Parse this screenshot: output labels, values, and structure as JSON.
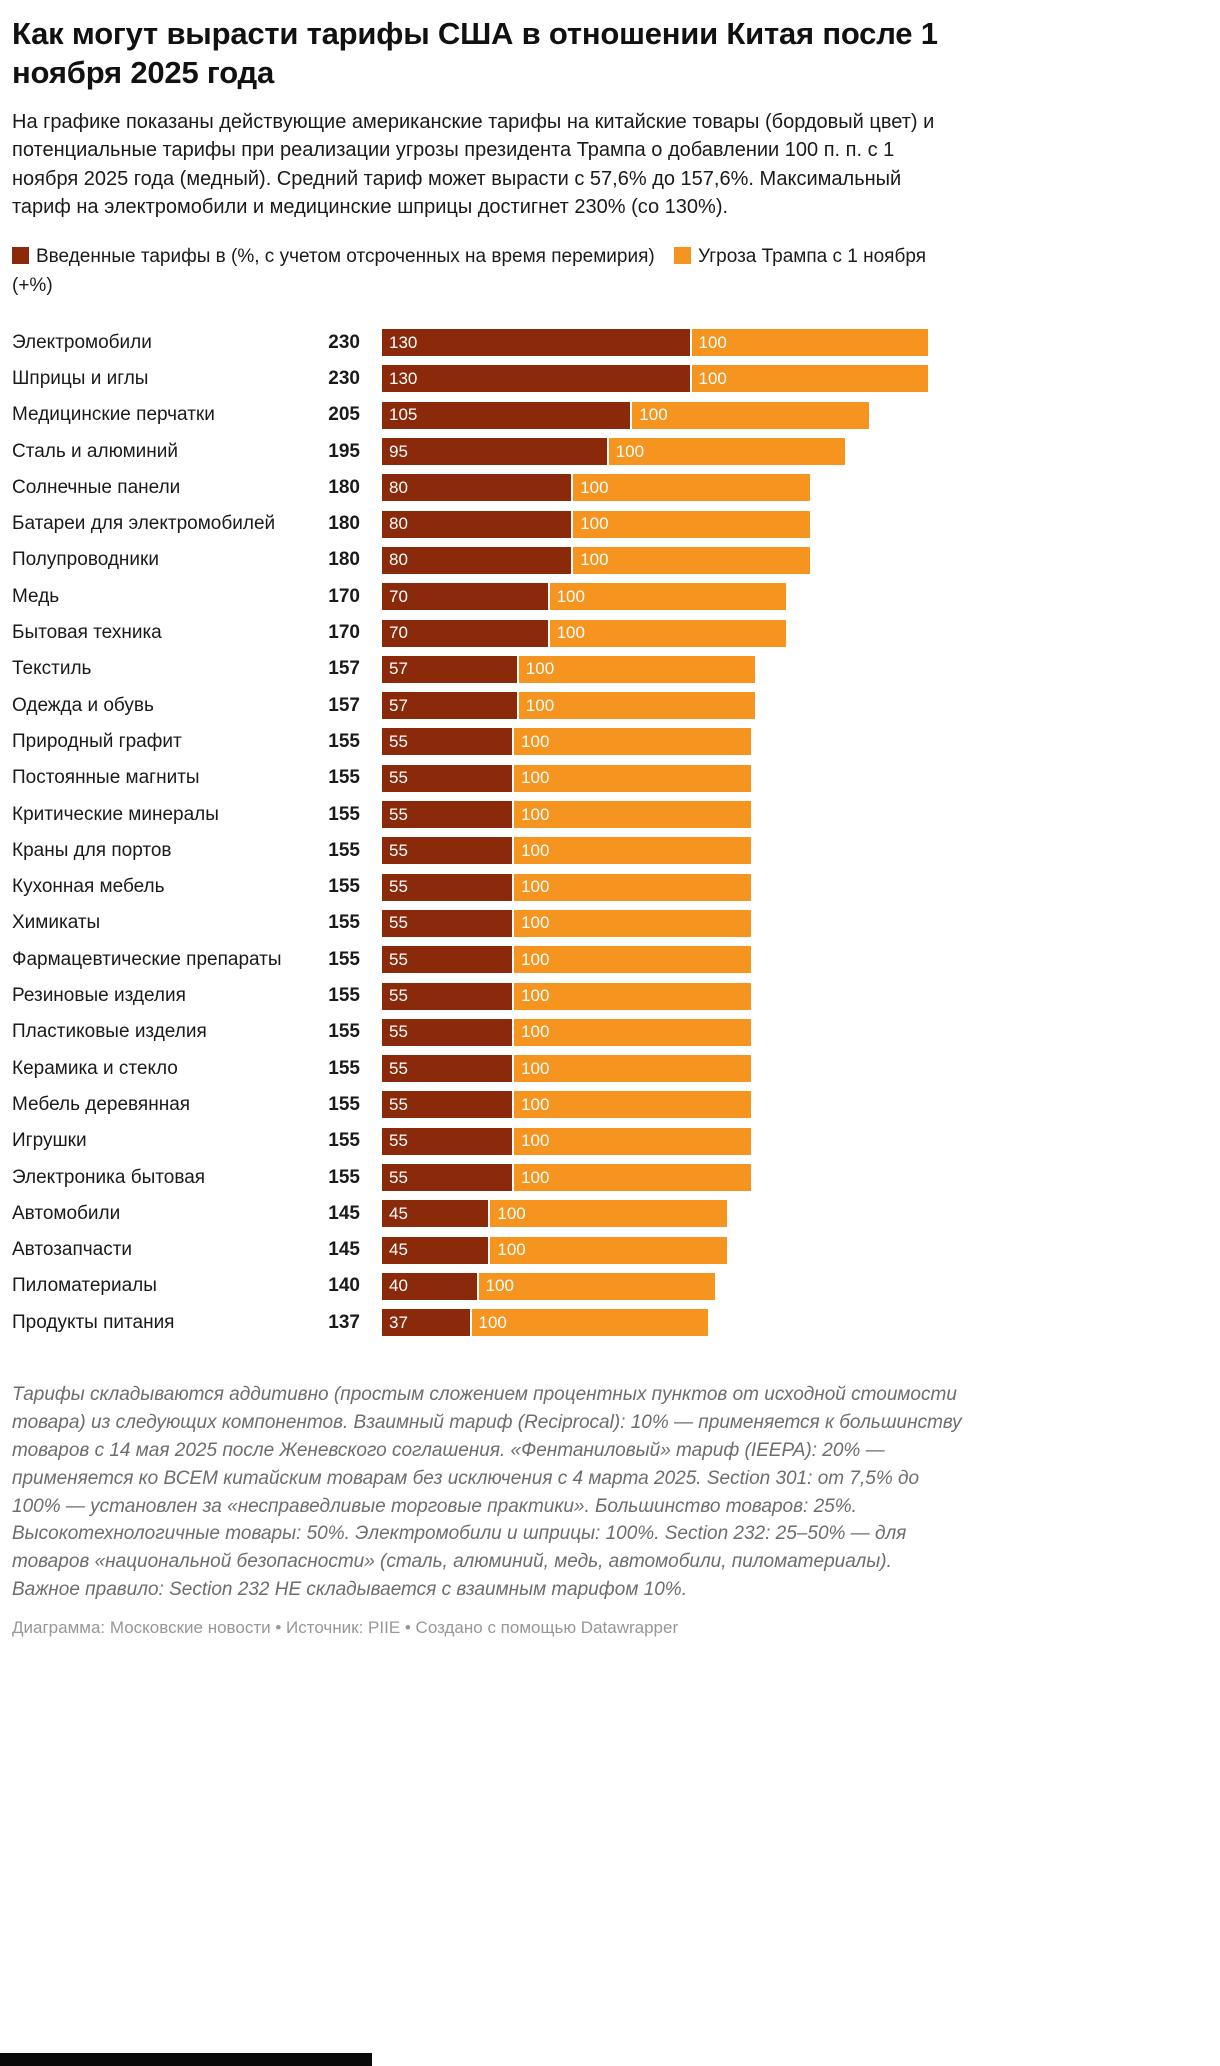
{
  "header": {
    "title": "Как могут вырасти тарифы США в отношении Китая после 1 ноября 2025 года",
    "description": "На графике показаны действующие американские тарифы на китайские товары (бордовый цвет) и потенциальные тарифы при реализации угрозы президента Трампа о добавлении 100 п. п. с 1 ноября 2025 года (медный). Средний тариф может вырасти с 57,6% до 157,6%. Максимальный тариф на электромобили и медицинские шприцы достигнет 230% (со 130%)."
  },
  "legend": {
    "items": [
      {
        "label": "Введенные тарифы в (%, с учетом отсроченных на время перемирия)",
        "color": "#8B2A0A"
      },
      {
        "label": "Угроза Трампа с 1 ноября (+%)",
        "color": "#F5941F"
      }
    ]
  },
  "chart_data": {
    "type": "bar",
    "orientation": "horizontal",
    "stacked": true,
    "xmax": 230,
    "categories": [
      "Электромобили",
      "Шприцы и иглы",
      "Медицинские перчатки",
      "Сталь и алюминий",
      "Солнечные панели",
      "Батареи для электромобилей",
      "Полупроводники",
      "Медь",
      "Бытовая техника",
      "Текстиль",
      "Одежда и обувь",
      "Природный графит",
      "Постоянные магниты",
      "Критические минералы",
      "Краны для портов",
      "Кухонная мебель",
      "Химикаты",
      "Фармацевтические препараты",
      "Резиновые изделия",
      "Пластиковые изделия",
      "Керамика и стекло",
      "Мебель деревянная",
      "Игрушки",
      "Электроника бытовая",
      "Автомобили",
      "Автозапчасти",
      "Пиломатериалы",
      "Продукты питания"
    ],
    "series": [
      {
        "name": "Введенные тарифы в (%, с учетом отсроченных на время перемирия)",
        "color": "#8B2A0A",
        "values": [
          130,
          130,
          105,
          95,
          80,
          80,
          80,
          70,
          70,
          57,
          57,
          55,
          55,
          55,
          55,
          55,
          55,
          55,
          55,
          55,
          55,
          55,
          55,
          55,
          45,
          45,
          40,
          37
        ]
      },
      {
        "name": "Угроза Трампа с 1 ноября (+%)",
        "color": "#F5941F",
        "values": [
          100,
          100,
          100,
          100,
          100,
          100,
          100,
          100,
          100,
          100,
          100,
          100,
          100,
          100,
          100,
          100,
          100,
          100,
          100,
          100,
          100,
          100,
          100,
          100,
          100,
          100,
          100,
          100
        ]
      }
    ],
    "totals": [
      230,
      230,
      205,
      195,
      180,
      180,
      180,
      170,
      170,
      157,
      157,
      155,
      155,
      155,
      155,
      155,
      155,
      155,
      155,
      155,
      155,
      155,
      155,
      155,
      145,
      145,
      140,
      137
    ]
  },
  "footnote": "Тарифы складываются аддитивно (простым сложением процентных пунктов от исходной стоимости товара) из следующих компонентов. Взаимный тариф (Reciprocal): 10% — применяется к большинству товаров с 14 мая 2025 после Женевского соглашения. «Фентаниловый» тариф (IEEPA): 20% — применяется ко ВСЕМ китайским товарам без исключения с 4 марта 2025. Section 301: от 7,5% до 100% — установлен за «несправедливые торговые практики». Большинство товаров: 25%. Высокотехнологичные товары: 50%. Электромобили и шприцы: 100%. Section 232: 25–50% — для товаров «национальной безопасности» (сталь, алюминий, медь, автомобили, пиломатериалы). Важное правило: Section 232 НЕ складывается с взаимным тарифом 10%.",
  "credit": "Диаграмма: Московские новости • Источник: PIIE • Создано с помощью Datawrapper"
}
